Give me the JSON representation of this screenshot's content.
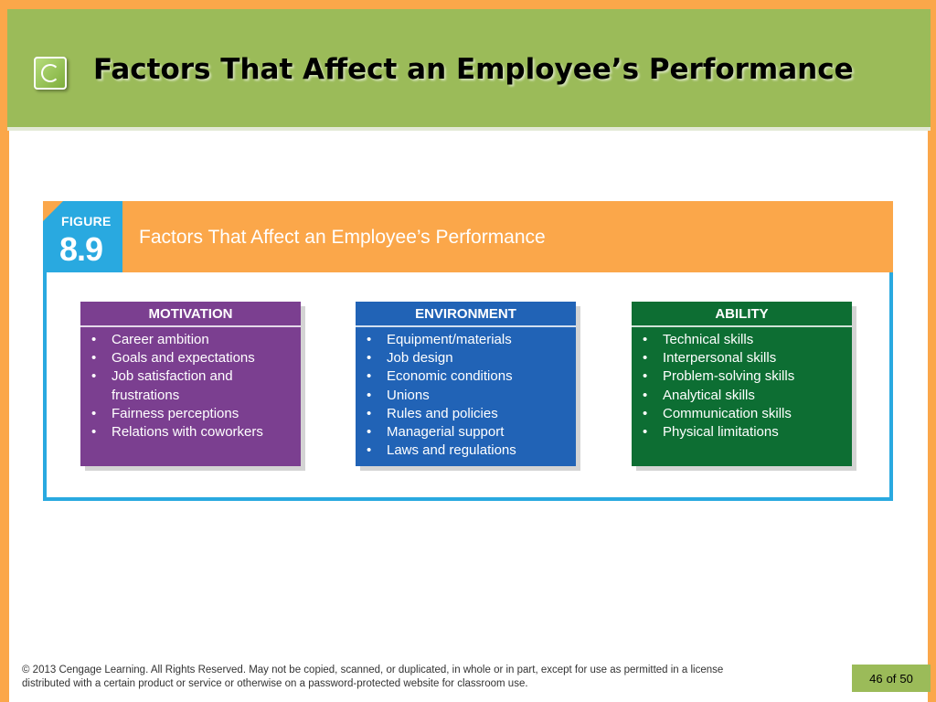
{
  "slide": {
    "title": "Factors That Affect an Employee’s Performance"
  },
  "figure": {
    "label": "FIGURE",
    "number": "8.9",
    "caption": "Factors That Affect an Employee’s Performance",
    "boxes": [
      {
        "heading": "MOTIVATION",
        "color": "#7b3f90",
        "items": [
          "Career ambition",
          "Goals and expectations",
          "Job satisfaction and frustrations",
          "Fairness perceptions",
          "Relations with coworkers"
        ]
      },
      {
        "heading": "ENVIRONMENT",
        "color": "#2163b6",
        "items": [
          "Equipment/materials",
          "Job design",
          "Economic conditions",
          "Unions",
          "Rules and policies",
          "Managerial support",
          "Laws and regulations"
        ]
      },
      {
        "heading": "ABILITY",
        "color": "#0d6e33",
        "items": [
          "Technical skills",
          "Interpersonal skills",
          "Problem-solving skills",
          "Analytical skills",
          "Communication skills",
          "Physical limitations"
        ]
      }
    ]
  },
  "footer": {
    "copyright": "© 2013 Cengage Learning. All Rights Reserved. May not be copied, scanned, or duplicated, in whole or in part, except for use as permitted in a license distributed with a certain product or service or otherwise on a password-protected website for classroom use.",
    "page_current": "46",
    "page_of": "of",
    "page_total": "50"
  },
  "colors": {
    "frame": "#fba74a",
    "header": "#9bbb59",
    "figure_accent": "#29a9e0"
  },
  "icons": {
    "header": "slide-bullet-icon"
  }
}
